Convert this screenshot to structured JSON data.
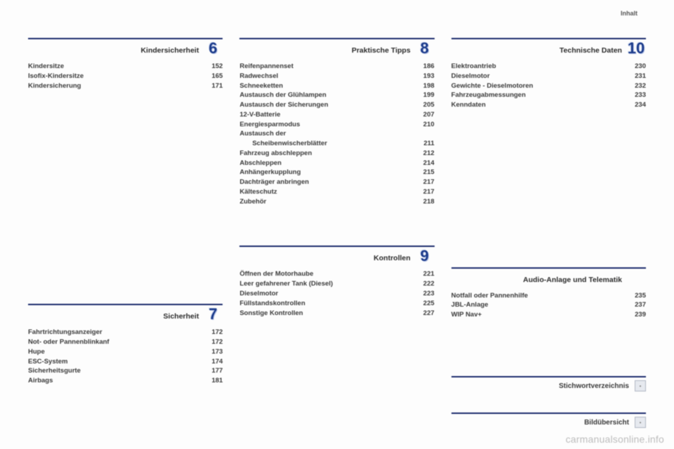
{
  "header": "Inhalt",
  "watermark": "carmanualsonline.info",
  "col1": {
    "sec1": {
      "num": "6",
      "title": "Kindersicherheit",
      "items": [
        {
          "lbl": "Kindersitze",
          "pg": "152"
        },
        {
          "lbl": "Isofix-Kindersitze",
          "pg": "165"
        },
        {
          "lbl": "Kindersicherung",
          "pg": "171"
        }
      ]
    },
    "sec2": {
      "num": "7",
      "title": "Sicherheit",
      "items": [
        {
          "lbl": "Fahrtrichtungsanzeiger",
          "pg": "172"
        },
        {
          "lbl": "Not- oder Pannenblinkanf",
          "pg": "172"
        },
        {
          "lbl": "Hupe",
          "pg": "173"
        },
        {
          "lbl": "ESC-System",
          "pg": "174"
        },
        {
          "lbl": "Sicherheitsgurte",
          "pg": "177"
        },
        {
          "lbl": "Airbags",
          "pg": "181"
        }
      ]
    }
  },
  "col2": {
    "sec1": {
      "num": "8",
      "title": "Praktische Tipps",
      "items": [
        {
          "lbl": "Reifenpannenset",
          "pg": "186"
        },
        {
          "lbl": "Radwechsel",
          "pg": "193"
        },
        {
          "lbl": "Schneeketten",
          "pg": "198"
        },
        {
          "lbl": "Austausch der Glühlampen",
          "pg": "199"
        },
        {
          "lbl": "Austausch der Sicherungen",
          "pg": "205"
        },
        {
          "lbl": "12-V-Batterie",
          "pg": "207"
        },
        {
          "lbl": "Energiesparmodus",
          "pg": "210"
        },
        {
          "lbl": "Austausch der",
          "pg": ""
        },
        {
          "lbl": "Scheibenwischerblätter",
          "pg": "211",
          "indent": true
        },
        {
          "lbl": "Fahrzeug abschleppen",
          "pg": "212"
        },
        {
          "lbl": "Abschleppen",
          "pg": "214"
        },
        {
          "lbl": "Anhängerkupplung",
          "pg": "215"
        },
        {
          "lbl": "Dachträger anbringen",
          "pg": "217"
        },
        {
          "lbl": "Kälteschutz",
          "pg": "217"
        },
        {
          "lbl": "Zubehör",
          "pg": "218"
        }
      ]
    },
    "sec2": {
      "num": "9",
      "title": "Kontrollen",
      "items": [
        {
          "lbl": "Öffnen der Motorhaube",
          "pg": "221"
        },
        {
          "lbl": "Leer gefahrener Tank (Diesel)",
          "pg": "222"
        },
        {
          "lbl": "Dieselmotor",
          "pg": "223"
        },
        {
          "lbl": "Füllstandskontrollen",
          "pg": "225"
        },
        {
          "lbl": "Sonstige Kontrollen",
          "pg": "227"
        }
      ]
    }
  },
  "col3": {
    "sec1": {
      "num": "10",
      "title": "Technische Daten",
      "items": [
        {
          "lbl": "Elektroantrieb",
          "pg": "230"
        },
        {
          "lbl": "Dieselmotor",
          "pg": "231"
        },
        {
          "lbl": "Gewichte - Dieselmotoren",
          "pg": "232"
        },
        {
          "lbl": "Fahrzeugabmessungen",
          "pg": "233"
        },
        {
          "lbl": "Kenndaten",
          "pg": "234"
        }
      ]
    },
    "sec2": {
      "title": "Audio-Anlage und Telematik",
      "items": [
        {
          "lbl": "Notfall oder Pannenhilfe",
          "pg": "235"
        },
        {
          "lbl": "JBL-Anlage",
          "pg": "237"
        },
        {
          "lbl": "WIP Nav+",
          "pg": "239"
        }
      ]
    },
    "idx1": "Stichwortverzeichnis",
    "idx2": "Bildübersicht"
  }
}
